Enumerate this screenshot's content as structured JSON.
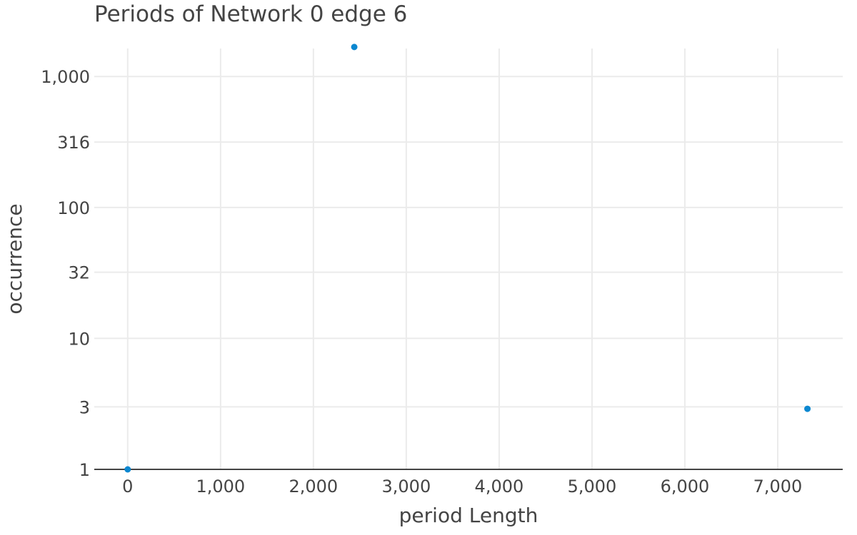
{
  "chart_data": {
    "type": "scatter",
    "title": "Periods of Network 0 edge 6",
    "xlabel": "period Length",
    "ylabel": "occurrence",
    "y_scale": "log",
    "xlim": [
      -360,
      7700
    ],
    "ylim": [
      1,
      1720
    ],
    "x_ticks": [
      0,
      1000,
      2000,
      3000,
      4000,
      5000,
      6000,
      7000
    ],
    "x_tick_labels": [
      "0",
      "1,000",
      "2,000",
      "3,000",
      "4,000",
      "5,000",
      "6,000",
      "7,000"
    ],
    "y_ticks": [
      1,
      3,
      10,
      32,
      100,
      316,
      1000
    ],
    "y_tick_labels": [
      "1",
      "3",
      "10",
      "32",
      "100",
      "316",
      "1,000"
    ],
    "grid": true,
    "legend": "none",
    "marker_color": "#0b87d0",
    "series": [
      {
        "x": [
          0,
          2440,
          7320
        ],
        "y": [
          1,
          1680,
          2.9
        ]
      }
    ]
  }
}
